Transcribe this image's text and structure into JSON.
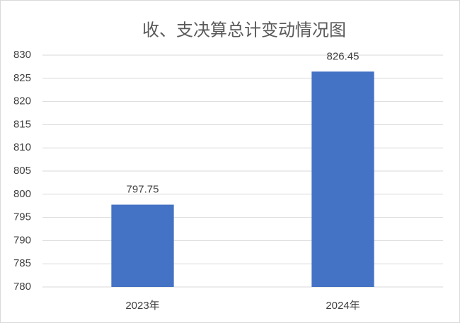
{
  "chart_data": {
    "type": "bar",
    "title": "收、支决算总计变动情况图",
    "categories": [
      "2023年",
      "2024年"
    ],
    "values": [
      797.75,
      826.45
    ],
    "color": "#4472c4",
    "ylim": [
      780,
      830
    ],
    "yticks": [
      780,
      785,
      790,
      795,
      800,
      805,
      810,
      815,
      820,
      825,
      830
    ],
    "grid": true
  }
}
